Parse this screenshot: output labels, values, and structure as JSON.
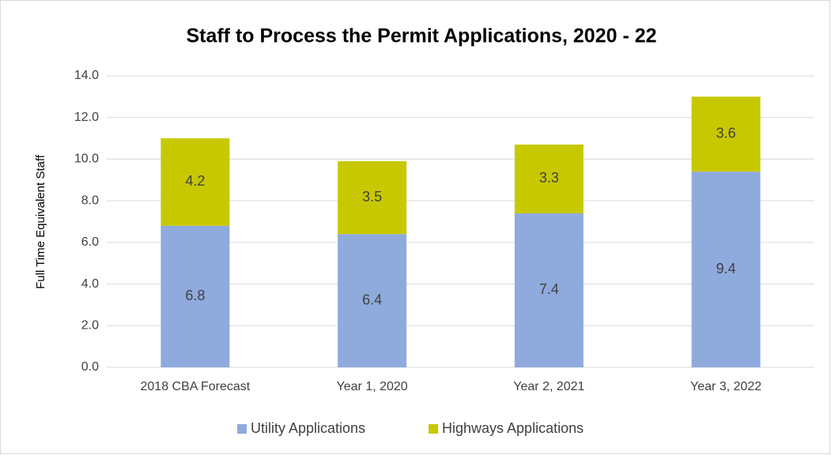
{
  "chart_data": {
    "type": "stacked_bar",
    "title": "Staff to Process the Permit Applications, 2020 - 22",
    "y_label": "Full Time Equivalent  Staff",
    "categories": [
      "2018 CBA Forecast",
      "Year 1, 2020",
      "Year 2, 2021",
      "Year 3, 2022"
    ],
    "series": [
      {
        "name": "Utility Applications",
        "color": "#8faadc",
        "values": [
          6.8,
          6.4,
          7.4,
          9.4
        ]
      },
      {
        "name": "Highways Applications",
        "color": "#c8c800",
        "values": [
          4.2,
          3.5,
          3.3,
          3.6
        ]
      }
    ],
    "ylim": [
      0,
      14
    ],
    "yticks": [
      {
        "value": 0,
        "label": "0.0"
      },
      {
        "value": 2,
        "label": "2.0"
      },
      {
        "value": 4,
        "label": "4.0"
      },
      {
        "value": 6,
        "label": "6.0"
      },
      {
        "value": 8,
        "label": "8.0"
      },
      {
        "value": 10,
        "label": "10.0"
      },
      {
        "value": 12,
        "label": "12.0"
      },
      {
        "value": 14,
        "label": "14.0"
      }
    ],
    "grid": true,
    "legend": "bottom"
  }
}
